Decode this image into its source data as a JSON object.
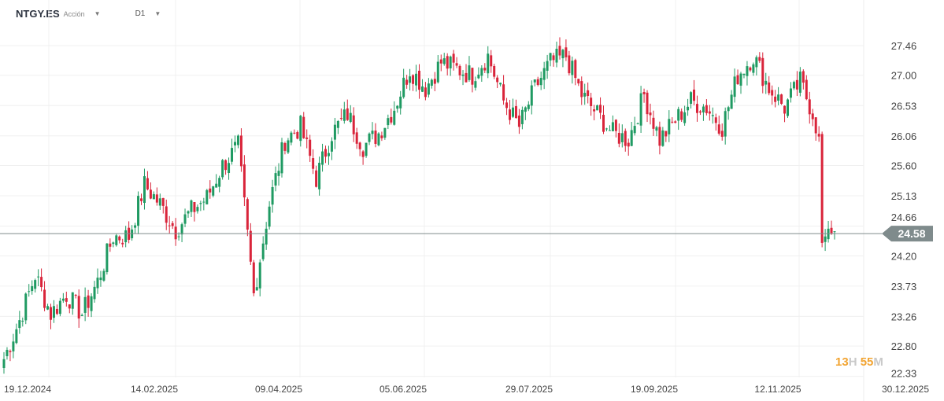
{
  "header": {
    "symbol": "NTGY.ES",
    "type": "Acción",
    "timeframe": "D1"
  },
  "timer": {
    "hours": "13",
    "h_unit": "H",
    "minutes": "55",
    "m_unit": "M"
  },
  "chart_data": {
    "type": "candlestick",
    "title": "NTGY.ES D1",
    "y_ticks": [
      "27.46",
      "27.00",
      "26.53",
      "26.06",
      "25.60",
      "25.13",
      "24.66",
      "24.20",
      "23.73",
      "23.26",
      "22.80",
      "22.33"
    ],
    "x_ticks": [
      "19.12.2024",
      "14.02.2025",
      "09.04.2025",
      "05.06.2025",
      "29.07.2025",
      "19.09.2025",
      "12.11.2025",
      "30.12.2025"
    ],
    "ylim": [
      22.33,
      27.46
    ],
    "last_price": "24.58",
    "weekly_closes": [
      22.6,
      23.2,
      23.9,
      23.3,
      23.6,
      23.3,
      23.8,
      24.5,
      24.5,
      25.3,
      25.0,
      24.6,
      24.9,
      25.1,
      25.6,
      25.9,
      23.6,
      25.0,
      26.0,
      26.2,
      25.4,
      26.1,
      26.4,
      25.9,
      26.1,
      26.5,
      27.1,
      26.8,
      27.2,
      27.1,
      27.0,
      27.3,
      26.6,
      26.2,
      26.8,
      27.2,
      27.3,
      26.7,
      26.4,
      26.1,
      26.0,
      26.7,
      26.0,
      26.3,
      26.6,
      26.5,
      26.2,
      27.0,
      27.3,
      26.8,
      26.5,
      26.9,
      26.3
    ],
    "last_days_closes": [
      26.1,
      26.05,
      24.4,
      24.5,
      24.62,
      24.55,
      24.58
    ],
    "colors": {
      "up": "#1f9a62",
      "down": "#d9243a",
      "price_line": "#7f8b8c"
    }
  }
}
